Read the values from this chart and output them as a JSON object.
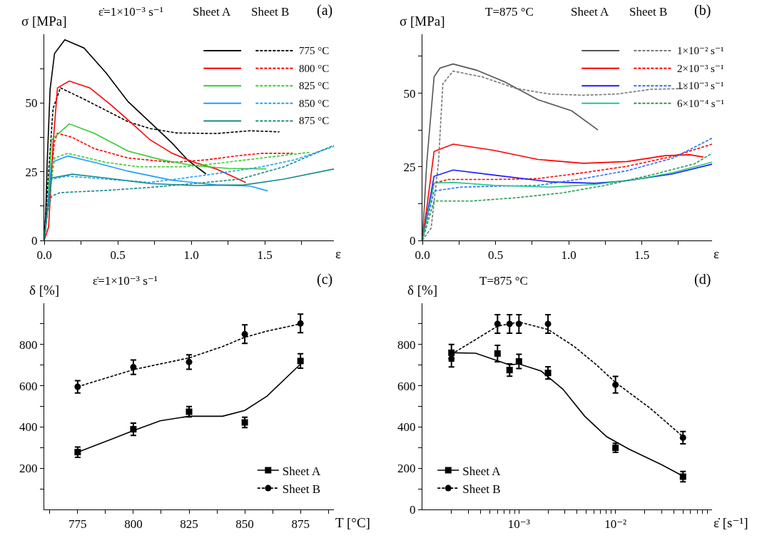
{
  "chart_data": [
    {
      "type": "line",
      "xlabel": "ε",
      "ylabel": "σ [MPa]",
      "annotations": [
        "ε̇=1×10⁻³ s⁻¹",
        "Sheet A",
        "Sheet B",
        "(a)"
      ],
      "legend": "top right",
      "xlim": [
        0,
        1.97
      ],
      "ylim": [
        0,
        75
      ],
      "xticks": [
        {
          "value": 0,
          "label": "0.0"
        },
        {
          "value": 0.25,
          "label": null
        },
        {
          "value": 0.5,
          "label": "0.5"
        },
        {
          "value": 0.75,
          "label": null
        },
        {
          "value": 1,
          "label": "1.0"
        },
        {
          "value": 1.25,
          "label": null
        },
        {
          "value": 1.5,
          "label": "1.5"
        },
        {
          "value": 1.75,
          "label": null
        }
      ],
      "yticks": [
        0,
        {
          "value": 12.5,
          "label": null
        },
        25,
        {
          "value": 37.5,
          "label": null
        },
        50,
        {
          "value": 62.5,
          "label": null
        }
      ],
      "series": [
        {
          "color": "#000000",
          "line_style": "solid",
          "x": [
            0,
            0.01,
            0.02,
            0.04,
            0.07,
            0.14,
            0.27,
            0.42,
            0.57,
            0.72,
            0.87,
            0.98,
            1.1
          ],
          "values": [
            0,
            10,
            28,
            55,
            68,
            73,
            70,
            61,
            50.5,
            43,
            35.4,
            29,
            24.2
          ]
        },
        {
          "name": "775 °C",
          "color": "#000000",
          "line_style": "dashed",
          "x": [
            0,
            0.03,
            0.06,
            0.11,
            0.27,
            0.42,
            0.57,
            0.72,
            0.9,
            1.17,
            1.4,
            1.6
          ],
          "values": [
            0,
            25,
            48,
            55.5,
            51.4,
            47.3,
            43.2,
            40.7,
            39.1,
            38.9,
            39.9,
            39.5
          ]
        },
        {
          "color": "#ff0000",
          "line_style": "solid",
          "x": [
            0,
            0.03,
            0.06,
            0.09,
            0.17,
            0.31,
            0.46,
            0.6,
            0.72,
            0.87,
            1.02,
            1.17,
            1.37
          ],
          "values": [
            0,
            5,
            35,
            55.5,
            58,
            55.5,
            49,
            42.4,
            36.6,
            31.7,
            28.4,
            26,
            21.1
          ]
        },
        {
          "name": "800 °C",
          "color": "#ff0000",
          "line_style": "dashed",
          "x": [
            0,
            0.04,
            0.07,
            0.09,
            0.19,
            0.34,
            0.57,
            0.87,
            1.1,
            1.33,
            1.48,
            1.69
          ],
          "values": [
            0,
            20,
            36,
            39,
            37.5,
            33.4,
            30,
            28.4,
            29.3,
            30.9,
            31.7,
            31.7
          ]
        },
        {
          "color": "#33cc33",
          "line_style": "solid",
          "x": [
            0,
            0.02,
            0.05,
            0.17,
            0.34,
            0.57,
            0.8,
            1.02,
            1.25,
            1.51
          ],
          "values": [
            0,
            10,
            36.6,
            42.4,
            39,
            32.5,
            29.3,
            27.2,
            26.2,
            26
          ]
        },
        {
          "name": "825 °C",
          "color": "#33cc33",
          "line_style": "dashed",
          "x": [
            0,
            0.02,
            0.07,
            0.16,
            0.42,
            0.64,
            0.95,
            1.17,
            1.48,
            1.81
          ],
          "values": [
            0,
            10,
            30,
            31.7,
            28.4,
            26.8,
            26.8,
            28,
            30,
            32.1
          ]
        },
        {
          "color": "#1ea0ff",
          "line_style": "solid",
          "x": [
            0,
            0.02,
            0.05,
            0.16,
            0.34,
            0.57,
            0.87,
            1.17,
            1.4,
            1.52
          ],
          "values": [
            0,
            10,
            28.4,
            30.7,
            28.4,
            25.2,
            21.9,
            20.2,
            19.8,
            18
          ]
        },
        {
          "name": "850 °C",
          "color": "#1ea0ff",
          "line_style": "dashed",
          "x": [
            0,
            0.02,
            0.05,
            0.16,
            0.42,
            0.72,
            0.95,
            1.17,
            1.48,
            1.7,
            1.97
          ],
          "values": [
            0,
            10,
            22.3,
            23.4,
            22.3,
            21.1,
            22.7,
            24.3,
            26.8,
            29.3,
            34.2
          ]
        },
        {
          "color": "#168a8a",
          "line_style": "solid",
          "x": [
            0,
            0.02,
            0.05,
            0.19,
            0.42,
            0.72,
            1.02,
            1.36,
            1.63,
            1.97
          ],
          "values": [
            0,
            10,
            22.7,
            24.1,
            22.7,
            20.7,
            20,
            20.2,
            22.3,
            26
          ]
        },
        {
          "name": "875 °C",
          "color": "#168a8a",
          "line_style": "dashed",
          "x": [
            0,
            0.02,
            0.05,
            0.11,
            0.42,
            0.72,
            1.02,
            1.33,
            1.63,
            1.97
          ],
          "values": [
            0,
            10,
            16.1,
            17.4,
            18.2,
            19.3,
            20.7,
            22.3,
            26.8,
            34.6
          ]
        }
      ]
    },
    {
      "type": "line",
      "xlabel": "ε",
      "ylabel": "σ [MPa]",
      "annotations": [
        "T=875 °C",
        "Sheet A",
        "Sheet B",
        "(b)"
      ],
      "legend": "top right",
      "xlim": [
        0,
        1.98
      ],
      "ylim": [
        0,
        70
      ],
      "xticks": [
        {
          "value": 0,
          "label": "0.0"
        },
        {
          "value": 0.25,
          "label": null
        },
        {
          "value": 0.5,
          "label": "0.5"
        },
        {
          "value": 0.75,
          "label": null
        },
        {
          "value": 1,
          "label": "1.0"
        },
        {
          "value": 1.25,
          "label": null
        },
        {
          "value": 1.5,
          "label": "1.5"
        },
        {
          "value": 1.75,
          "label": null
        }
      ],
      "yticks": [
        0,
        {
          "value": 12.5,
          "label": null
        },
        25,
        {
          "value": 37.5,
          "label": null
        },
        50,
        {
          "value": 62.5,
          "label": null
        }
      ],
      "series": [
        {
          "color": "#555555",
          "line_style": "solid",
          "x": [
            0,
            0.03,
            0.08,
            0.12,
            0.21,
            0.37,
            0.56,
            0.79,
            1.02,
            1.2
          ],
          "values": [
            0,
            26.4,
            55.5,
            58.5,
            59.9,
            57.8,
            53.9,
            47.8,
            44,
            37.5
          ]
        },
        {
          "name": "1×10⁻² s⁻¹",
          "color": "#777777",
          "line_style": "dashed",
          "x": [
            0,
            0.06,
            0.11,
            0.14,
            0.21,
            0.41,
            0.64,
            0.87,
            1.1,
            1.33,
            1.56,
            1.82
          ],
          "values": [
            0,
            4.2,
            26.4,
            53.2,
            57.5,
            55.5,
            51.6,
            49.7,
            49.3,
            49.7,
            51.3,
            51.6
          ]
        },
        {
          "color": "#ff0000",
          "line_style": "solid",
          "x": [
            0,
            0.03,
            0.08,
            0.21,
            0.49,
            0.79,
            1.1,
            1.4,
            1.66,
            1.83,
            1.92
          ],
          "values": [
            0,
            11,
            30.2,
            32.7,
            30.6,
            27.5,
            26.2,
            26.8,
            28.8,
            29.1,
            28.3
          ]
        },
        {
          "name": "2×10⁻³ s⁻¹",
          "color": "#ff0000",
          "line_style": "dashed",
          "x": [
            0,
            0.08,
            0.18,
            0.49,
            0.79,
            1.1,
            1.4,
            1.71,
            1.98
          ],
          "values": [
            0,
            19.5,
            20.7,
            20.7,
            21,
            23,
            25.2,
            28.5,
            32.7
          ]
        },
        {
          "color": "#1a1aff",
          "line_style": "solid",
          "x": [
            0,
            0.08,
            0.21,
            0.49,
            0.87,
            1.18,
            1.4,
            1.71,
            1.98
          ],
          "values": [
            0,
            21.8,
            23.9,
            22.2,
            19.9,
            19.4,
            20.3,
            22.6,
            25.9
          ]
        },
        {
          "name": "1×10⁻³ s⁻¹",
          "color": "#2a6fff",
          "line_style": "dashed",
          "x": [
            0,
            0.08,
            0.26,
            0.49,
            0.79,
            1.1,
            1.4,
            1.71,
            1.98
          ],
          "values": [
            0,
            16.8,
            18.1,
            18.4,
            18.7,
            21,
            23.7,
            27.9,
            34.7
          ]
        },
        {
          "color": "#1ec98a",
          "line_style": "solid",
          "x": [
            0,
            0.08,
            0.21,
            0.49,
            0.87,
            1.18,
            1.48,
            1.71,
            1.98
          ],
          "values": [
            0,
            19.5,
            19.7,
            18.7,
            18.1,
            19,
            20.9,
            23,
            26.6
          ]
        },
        {
          "name": "6×10⁻⁴ s⁻¹",
          "color": "#2a9a50",
          "line_style": "dashed",
          "x": [
            0,
            0.08,
            0.34,
            0.64,
            0.95,
            1.25,
            1.56,
            1.86,
            1.98
          ],
          "values": [
            0,
            13.4,
            13.4,
            14.5,
            16.1,
            18.7,
            22.2,
            26,
            29.6
          ]
        }
      ]
    },
    {
      "type": "scatter",
      "xlabel": "T [°C]",
      "ylabel": "δ [%]",
      "annotations": [
        "ε̇=1×10⁻³ s⁻¹",
        "(c)"
      ],
      "legend": "bottom right",
      "xlim": [
        760,
        890
      ],
      "ylim": [
        0,
        1000
      ],
      "xticks": [
        {
          "value": 762.5,
          "label": null
        },
        775,
        {
          "value": 787.5,
          "label": null
        },
        800,
        {
          "value": 812.5,
          "label": null
        },
        825,
        {
          "value": 837.5,
          "label": null
        },
        850,
        {
          "value": 862.5,
          "label": null
        },
        875,
        {
          "value": 887.5,
          "label": null
        }
      ],
      "yticks": [
        {
          "value": 100,
          "label": null
        },
        200,
        {
          "value": 300,
          "label": null
        },
        400,
        {
          "value": 500,
          "label": null
        },
        600,
        {
          "value": 700,
          "label": null
        },
        800,
        {
          "value": 900,
          "label": null
        }
      ],
      "series": [
        {
          "name": "Sheet A",
          "color": "#000000",
          "marker": "square",
          "line_style": "solid",
          "x": [
            775,
            800,
            825,
            850,
            875
          ],
          "values": [
            278,
            389,
            474,
            422,
            720
          ],
          "errors": [
            25,
            30,
            25,
            25,
            35
          ]
        },
        {
          "name": "Sheet B",
          "color": "#000000",
          "marker": "circle",
          "line_style": "dashed",
          "x": [
            775,
            800,
            825,
            850,
            875
          ],
          "values": [
            595,
            690,
            715,
            850,
            902
          ],
          "errors": [
            30,
            35,
            35,
            45,
            45
          ]
        },
        {
          "type": "line",
          "color": "#000000",
          "line_style": "solid",
          "x": [
            775,
            790,
            800,
            812,
            825,
            840,
            850,
            860,
            875
          ],
          "values": [
            278,
            340,
            382,
            430,
            452,
            452,
            480,
            550,
            705
          ]
        },
        {
          "type": "line",
          "color": "#000000",
          "line_style": "dashed",
          "x": [
            775,
            800,
            825,
            840,
            850,
            860,
            875
          ],
          "values": [
            595,
            678,
            735,
            790,
            835,
            865,
            900
          ]
        }
      ]
    },
    {
      "type": "scatter",
      "xlabel": "ε̇ [s⁻¹]",
      "ylabel": "δ [%]",
      "annotations": [
        "T=875 °C",
        "(d)"
      ],
      "legend": "bottom left",
      "log": "x",
      "xlim": [
        0.0001,
        0.1
      ],
      "ylim": [
        0,
        1000
      ],
      "xticks": [
        {
          "value": 0.0002,
          "label": null
        },
        {
          "value": 0.0003,
          "label": null
        },
        {
          "value": 0.0004,
          "label": null
        },
        {
          "value": 0.0005,
          "label": null
        },
        {
          "value": 0.0006,
          "label": null
        },
        {
          "value": 0.0007,
          "label": null
        },
        {
          "value": 0.0008,
          "label": null
        },
        {
          "value": 0.0009,
          "label": null
        },
        {
          "value": 0.001,
          "label": "10⁻³"
        },
        {
          "value": 0.002,
          "label": null
        },
        {
          "value": 0.003,
          "label": null
        },
        {
          "value": 0.004,
          "label": null
        },
        {
          "value": 0.005,
          "label": null
        },
        {
          "value": 0.006,
          "label": null
        },
        {
          "value": 0.007,
          "label": null
        },
        {
          "value": 0.008,
          "label": null
        },
        {
          "value": 0.009,
          "label": null
        },
        {
          "value": 0.01,
          "label": "10⁻²"
        },
        {
          "value": 0.02,
          "label": null
        },
        {
          "value": 0.03,
          "label": null
        },
        {
          "value": 0.04,
          "label": null
        },
        {
          "value": 0.05,
          "label": null
        },
        {
          "value": 0.06,
          "label": null
        },
        {
          "value": 0.07,
          "label": null
        },
        {
          "value": 0.08,
          "label": null
        },
        {
          "value": 0.09,
          "label": null
        }
      ],
      "yticks": [
        0,
        {
          "value": 100,
          "label": null
        },
        200,
        {
          "value": 300,
          "label": null
        },
        400,
        {
          "value": 500,
          "label": null
        },
        600,
        {
          "value": 700,
          "label": null
        },
        800,
        {
          "value": 900,
          "label": null
        }
      ],
      "series": [
        {
          "name": "Sheet A",
          "color": "#000000",
          "marker": "square",
          "line_style": "solid",
          "x": [
            0.0002,
            0.0006,
            0.0008,
            0.001,
            0.002,
            0.01,
            0.05
          ],
          "values": [
            760,
            756,
            676,
            718,
            662,
            299,
            159
          ],
          "errors": [
            40,
            40,
            30,
            35,
            30,
            22,
            25
          ]
        },
        {
          "name": "Sheet B",
          "color": "#000000",
          "marker": "circle",
          "line_style": "dashed",
          "x": [
            0.0002,
            0.0006,
            0.0008,
            0.001,
            0.002,
            0.01,
            0.05
          ],
          "values": [
            731,
            900,
            900,
            900,
            900,
            605,
            348
          ],
          "errors": [
            40,
            45,
            45,
            45,
            45,
            40,
            30
          ]
        },
        {
          "type": "line",
          "color": "#000000",
          "line_style": "solid",
          "x": [
            0.0002,
            0.000356,
            0.0008,
            0.001,
            0.0017,
            0.00286,
            0.0048,
            0.0081,
            0.0137,
            0.03,
            0.05
          ],
          "values": [
            760,
            758,
            701,
            706,
            671,
            583,
            452,
            353,
            293,
            217,
            162
          ]
        },
        {
          "type": "line",
          "color": "#000000",
          "line_style": "dashed",
          "x": [
            0.0002,
            0.000356,
            0.0006,
            0.001,
            0.002,
            0.00372,
            0.00625,
            0.01,
            0.023,
            0.05
          ],
          "values": [
            753,
            824,
            889,
            909,
            873,
            791,
            704,
            616,
            490,
            353
          ]
        }
      ]
    }
  ]
}
